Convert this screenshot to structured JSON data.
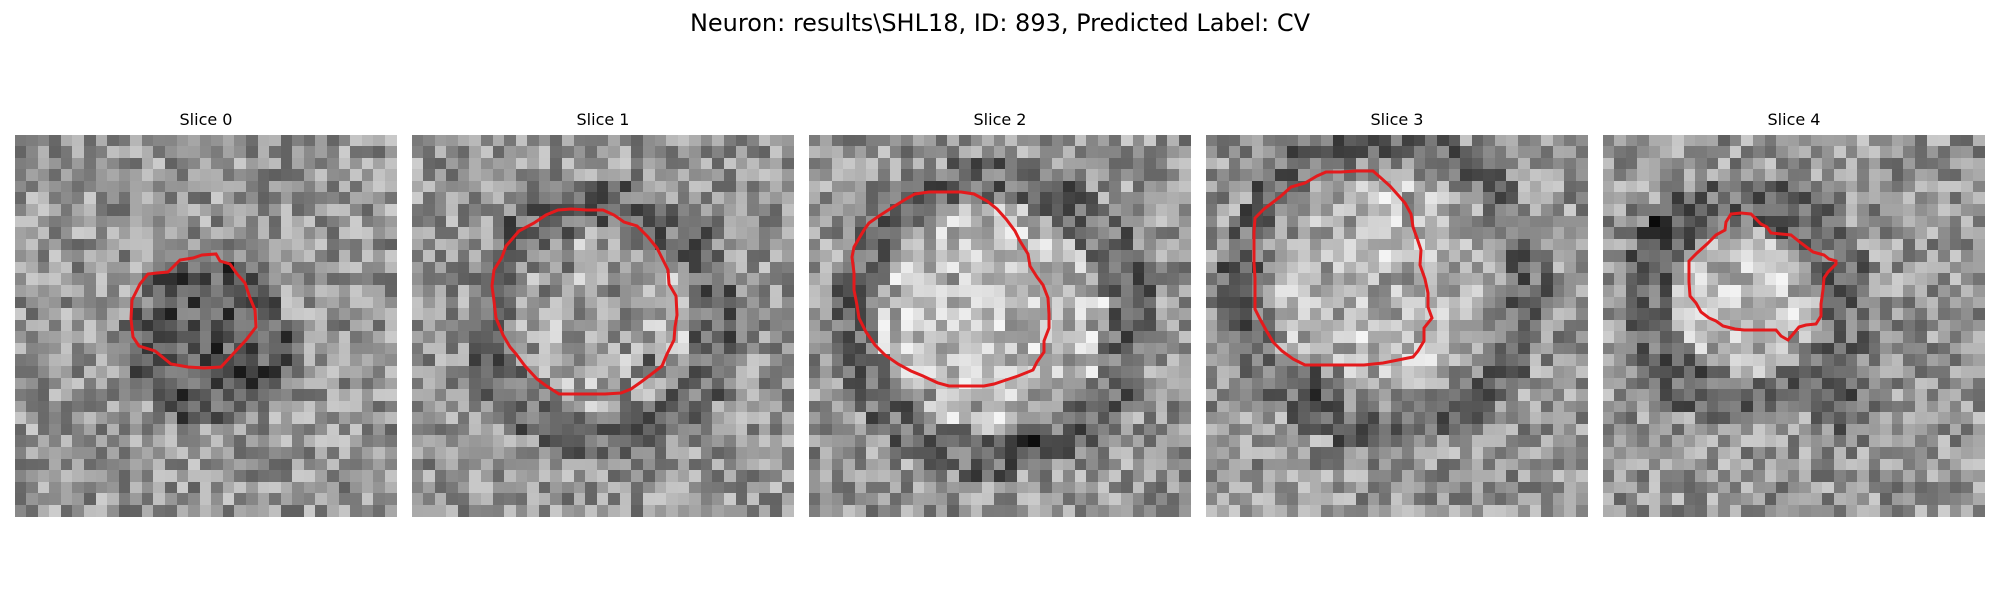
{
  "figure": {
    "title": "Neuron: results\\SHL18, ID: 893, Predicted Label: CV"
  },
  "colors": {
    "background": "#ffffff",
    "contour": "#e41a1c",
    "colormap": "grayscale"
  },
  "slices": [
    {
      "title": "Slice 0"
    },
    {
      "title": "Slice 1"
    },
    {
      "title": "Slice 2"
    },
    {
      "title": "Slice 3"
    },
    {
      "title": "Slice 4"
    }
  ]
}
